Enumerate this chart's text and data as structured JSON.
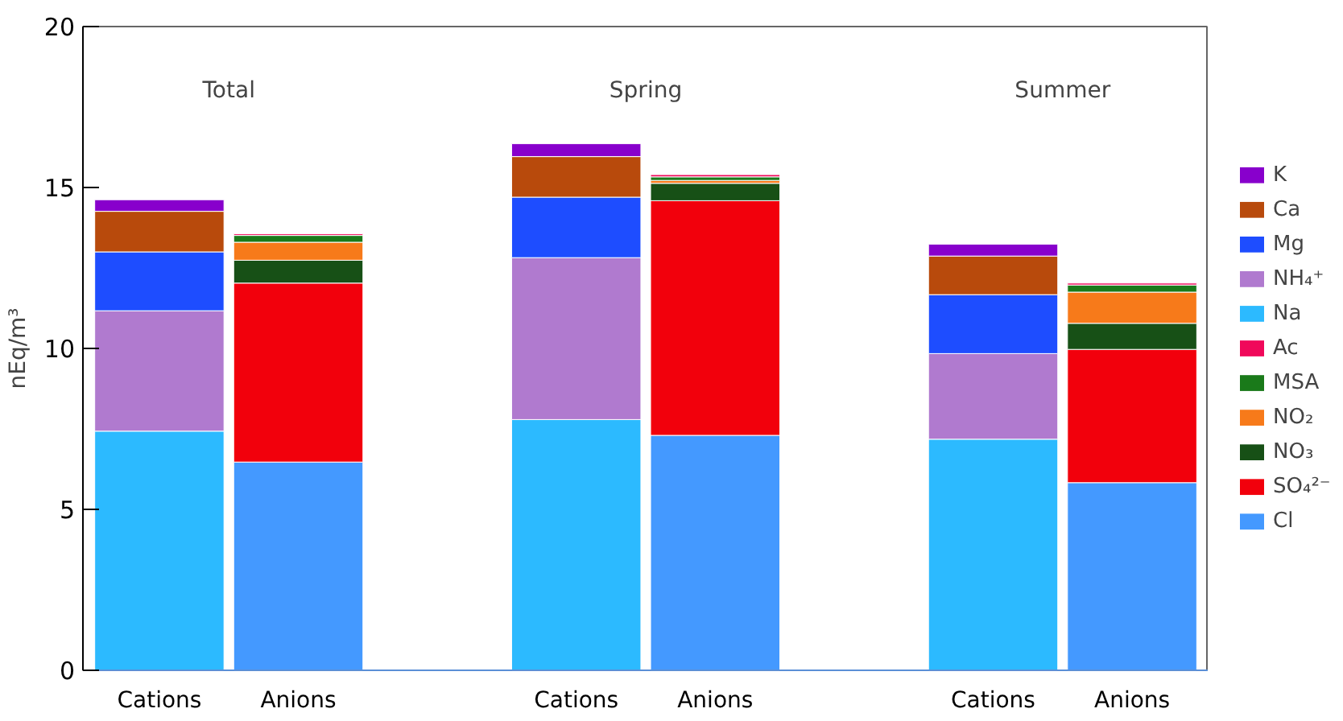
{
  "chart_data": {
    "type": "bar",
    "stacked": true,
    "ylabel": "nEq/m³",
    "categories": [
      "Cations",
      "Anions",
      null,
      "Cations",
      "Anions",
      null,
      "Cations",
      "Anions"
    ],
    "annotations": [
      "Total",
      "Spring",
      "Summer"
    ],
    "ylim": [
      0,
      20
    ],
    "yticks": [
      0,
      5,
      10,
      15,
      20
    ],
    "legend": "right",
    "series": [
      {
        "name": "Cl",
        "color": "#4499ff",
        "values": [
          null,
          6.47,
          null,
          null,
          7.3,
          null,
          null,
          5.83
        ]
      },
      {
        "name": "SO₄²⁻",
        "color": "#f2000c",
        "values": [
          null,
          5.56,
          null,
          null,
          7.29,
          null,
          null,
          4.14
        ]
      },
      {
        "name": "NO₃",
        "color": "#175016",
        "values": [
          null,
          0.71,
          null,
          null,
          0.54,
          null,
          null,
          0.81
        ]
      },
      {
        "name": "NO₂",
        "color": "#f77a1a",
        "values": [
          null,
          0.56,
          null,
          null,
          0.09,
          null,
          null,
          0.97
        ]
      },
      {
        "name": "MSA",
        "color": "#1a7a1a",
        "values": [
          null,
          0.21,
          null,
          null,
          0.11,
          null,
          null,
          0.22
        ]
      },
      {
        "name": "Ac",
        "color": "#f0085a",
        "values": [
          null,
          0.05,
          null,
          null,
          0.07,
          null,
          null,
          0.06
        ]
      },
      {
        "name": "Na",
        "color": "#2cbaff",
        "values": [
          7.43,
          null,
          null,
          7.79,
          null,
          null,
          7.18,
          null
        ]
      },
      {
        "name": "NH₄⁺",
        "color": "#b07acf",
        "values": [
          3.74,
          null,
          null,
          5.03,
          null,
          null,
          2.66,
          null
        ]
      },
      {
        "name": "Mg",
        "color": "#1e4dff",
        "values": [
          1.83,
          null,
          null,
          1.88,
          null,
          null,
          1.83,
          null
        ]
      },
      {
        "name": "Ca",
        "color": "#b84a0c",
        "values": [
          1.26,
          null,
          null,
          1.26,
          null,
          null,
          1.2,
          null
        ]
      },
      {
        "name": "K",
        "color": "#8800cc",
        "values": [
          0.36,
          null,
          null,
          0.4,
          null,
          null,
          0.37,
          null
        ]
      }
    ]
  }
}
